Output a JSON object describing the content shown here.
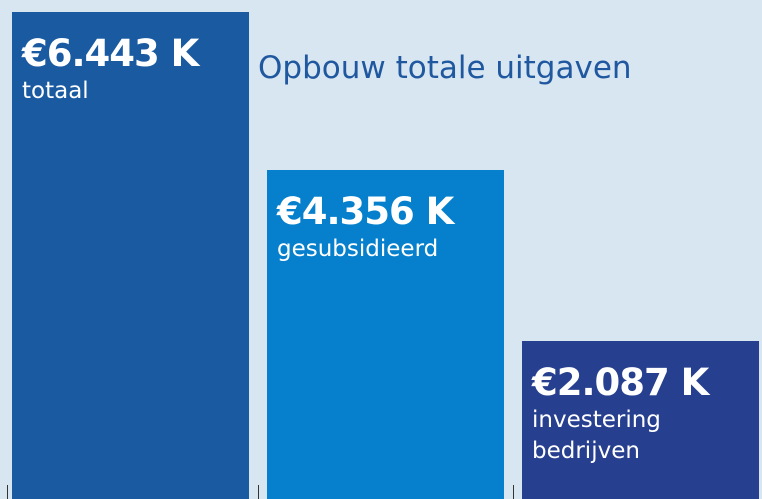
{
  "chart_data": {
    "type": "bar",
    "title": "Opbouw totale uitgaven",
    "categories": [
      "totaal",
      "gesubsidieerd",
      "investering bedrijven"
    ],
    "values": [
      6443,
      4356,
      2087
    ],
    "value_labels": [
      "€6.443 K",
      "€4.356 K",
      "€2.087 K"
    ],
    "colors": [
      "#1a5aa0",
      "#0680cc",
      "#263f8f"
    ]
  }
}
